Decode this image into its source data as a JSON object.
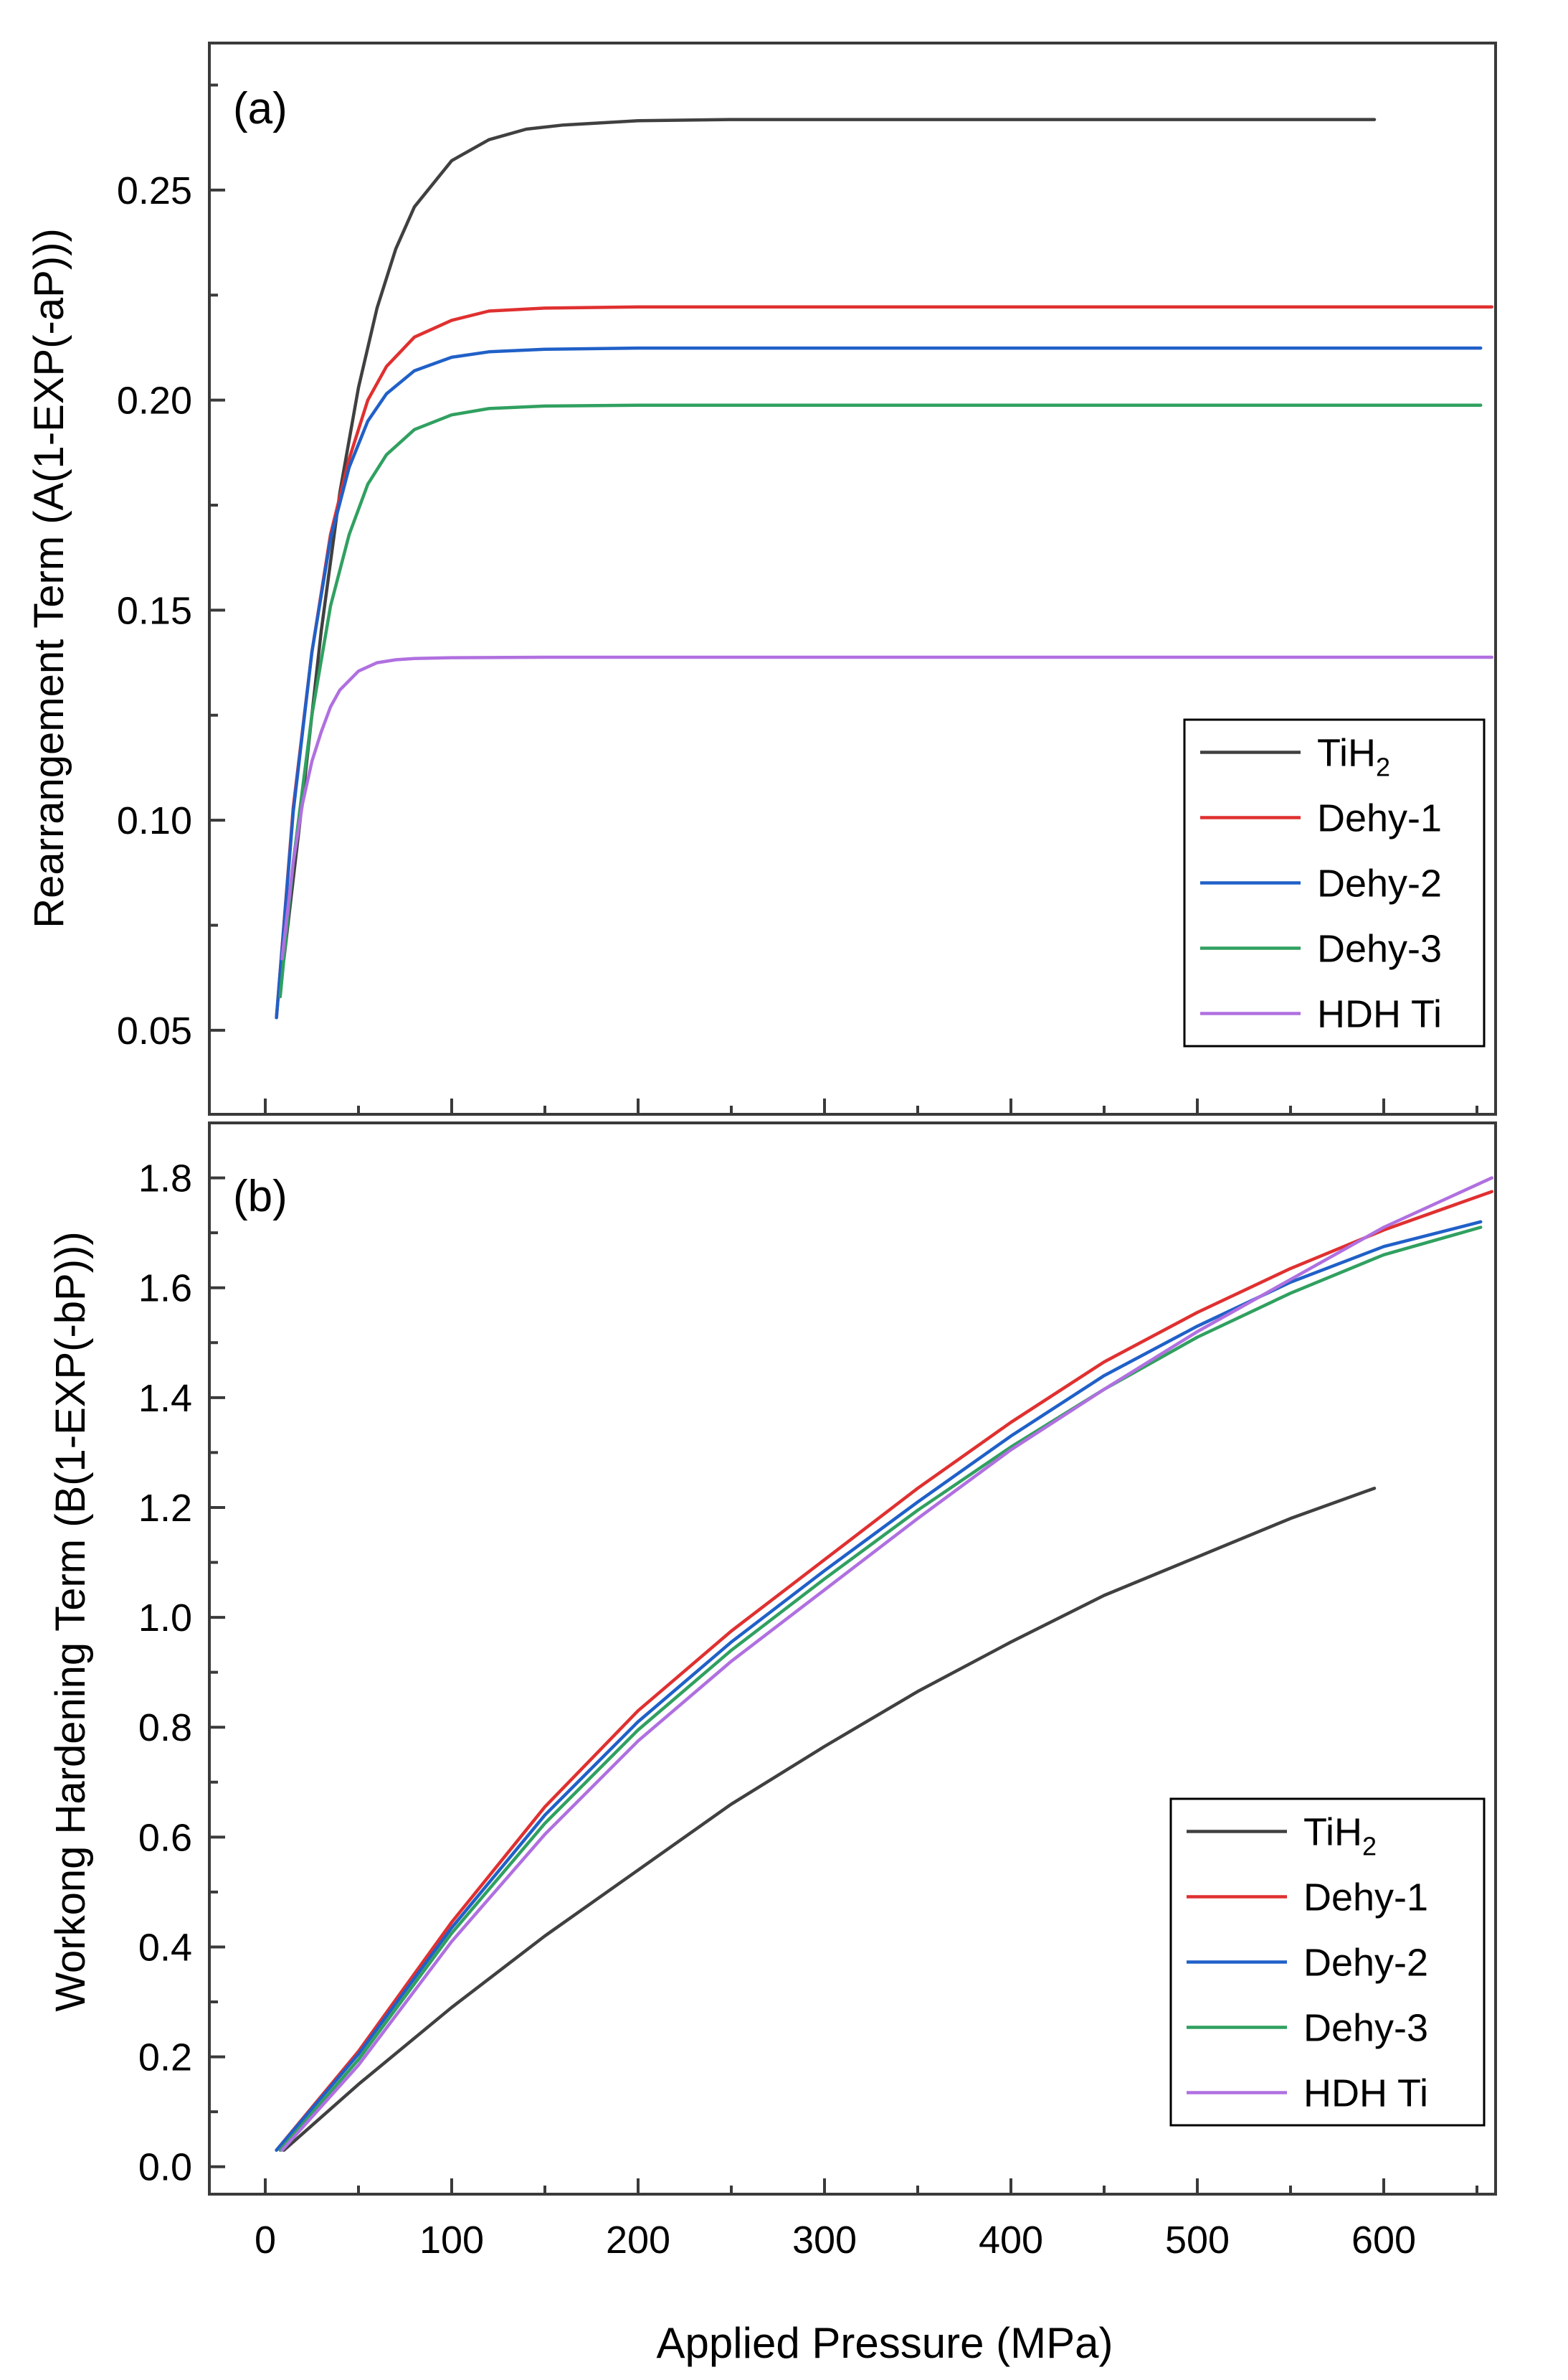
{
  "chart_data": [
    {
      "type": "line",
      "panel_label": "(a)",
      "title": "",
      "xlabel": "Applied Pressure (MPa)",
      "ylabel": "Rearrangement Term (A(1-EXP(-aP)))",
      "xlim": [
        -30,
        660
      ],
      "ylim": [
        0.03,
        0.285
      ],
      "xticks": [
        0,
        100,
        200,
        300,
        400,
        500,
        600
      ],
      "yticks": [
        0.05,
        0.1,
        0.15,
        0.2,
        0.25
      ],
      "ytick_labels": [
        "0.05",
        "0.10",
        "0.15",
        "0.20",
        "0.25"
      ],
      "grid": false,
      "legend_position": "bottom-right",
      "series": [
        {
          "name": "TiH",
          "name_sub": "2",
          "color": "#404040",
          "x": [
            10,
            20,
            30,
            40,
            50,
            60,
            70,
            80,
            100,
            120,
            140,
            160,
            180,
            200,
            250,
            300,
            400,
            500,
            595
          ],
          "y": [
            0.067,
            0.105,
            0.145,
            0.178,
            0.203,
            0.222,
            0.236,
            0.246,
            0.257,
            0.262,
            0.2645,
            0.2655,
            0.266,
            0.2665,
            0.2668,
            0.2668,
            0.2668,
            0.2668,
            0.2668
          ]
        },
        {
          "name": "Dehy-1",
          "name_sub": "",
          "color": "#e03030",
          "x": [
            6,
            15,
            25,
            35,
            45,
            55,
            65,
            80,
            100,
            120,
            150,
            200,
            300,
            400,
            500,
            600,
            658
          ],
          "y": [
            0.053,
            0.103,
            0.14,
            0.168,
            0.186,
            0.2,
            0.208,
            0.215,
            0.219,
            0.2212,
            0.2219,
            0.2222,
            0.2222,
            0.2222,
            0.2222,
            0.2222,
            0.2222
          ]
        },
        {
          "name": "Dehy-2",
          "name_sub": "",
          "color": "#2060c8",
          "x": [
            6,
            15,
            25,
            35,
            45,
            55,
            65,
            80,
            100,
            120,
            150,
            200,
            300,
            400,
            500,
            600,
            652
          ],
          "y": [
            0.053,
            0.102,
            0.14,
            0.167,
            0.184,
            0.195,
            0.2015,
            0.207,
            0.2102,
            0.2115,
            0.2121,
            0.2124,
            0.2124,
            0.2124,
            0.2124,
            0.2124,
            0.2124
          ]
        },
        {
          "name": "Dehy-3",
          "name_sub": "",
          "color": "#30a060",
          "x": [
            8,
            15,
            25,
            35,
            45,
            55,
            65,
            80,
            100,
            120,
            150,
            200,
            250,
            300,
            400,
            500,
            600,
            652
          ],
          "y": [
            0.058,
            0.09,
            0.125,
            0.151,
            0.168,
            0.18,
            0.187,
            0.193,
            0.1965,
            0.198,
            0.1986,
            0.1988,
            0.1988,
            0.1988,
            0.1988,
            0.1988,
            0.1988,
            0.1988
          ]
        },
        {
          "name": "HDH Ti",
          "name_sub": "",
          "color": "#b070e0",
          "x": [
            9,
            15,
            20,
            25,
            30,
            35,
            40,
            50,
            60,
            70,
            80,
            100,
            150,
            200,
            300,
            400,
            500,
            600,
            658
          ],
          "y": [
            0.067,
            0.09,
            0.104,
            0.114,
            0.121,
            0.127,
            0.131,
            0.1355,
            0.1375,
            0.1382,
            0.1385,
            0.1387,
            0.1388,
            0.1388,
            0.1388,
            0.1388,
            0.1388,
            0.1388,
            0.1388
          ]
        }
      ]
    },
    {
      "type": "line",
      "panel_label": "(b)",
      "title": "",
      "xlabel": "Applied Pressure (MPa)",
      "ylabel": "Workong Hardening Term (B(1-EXP(-bP)))",
      "xlim": [
        -30,
        660
      ],
      "ylim": [
        -0.05,
        1.9
      ],
      "xticks": [
        0,
        100,
        200,
        300,
        400,
        500,
        600
      ],
      "xtick_labels": [
        "0",
        "100",
        "200",
        "300",
        "400",
        "500",
        "600"
      ],
      "yticks": [
        0.0,
        0.2,
        0.4,
        0.6,
        0.8,
        1.0,
        1.2,
        1.4,
        1.6,
        1.8
      ],
      "ytick_labels": [
        "0.0",
        "0.2",
        "0.4",
        "0.6",
        "0.8",
        "1.0",
        "1.2",
        "1.4",
        "1.6",
        "1.8"
      ],
      "grid": false,
      "legend_position": "bottom-right",
      "series": [
        {
          "name": "TiH",
          "name_sub": "2",
          "color": "#404040",
          "x": [
            10,
            50,
            100,
            150,
            200,
            250,
            300,
            350,
            400,
            450,
            500,
            550,
            595
          ],
          "y": [
            0.03,
            0.15,
            0.29,
            0.42,
            0.54,
            0.66,
            0.765,
            0.865,
            0.955,
            1.04,
            1.11,
            1.18,
            1.235
          ]
        },
        {
          "name": "Dehy-1",
          "name_sub": "",
          "color": "#e03030",
          "x": [
            6,
            50,
            100,
            150,
            200,
            250,
            300,
            350,
            400,
            450,
            500,
            550,
            600,
            658
          ],
          "y": [
            0.03,
            0.21,
            0.445,
            0.655,
            0.83,
            0.975,
            1.105,
            1.235,
            1.355,
            1.465,
            1.555,
            1.635,
            1.705,
            1.775
          ]
        },
        {
          "name": "Dehy-2",
          "name_sub": "",
          "color": "#2060c8",
          "x": [
            6,
            50,
            100,
            150,
            200,
            250,
            300,
            350,
            400,
            450,
            500,
            550,
            600,
            652
          ],
          "y": [
            0.03,
            0.205,
            0.435,
            0.64,
            0.81,
            0.955,
            1.085,
            1.21,
            1.33,
            1.44,
            1.53,
            1.61,
            1.675,
            1.72
          ]
        },
        {
          "name": "Dehy-3",
          "name_sub": "",
          "color": "#30a060",
          "x": [
            8,
            50,
            100,
            150,
            200,
            250,
            300,
            350,
            400,
            450,
            500,
            550,
            600,
            652
          ],
          "y": [
            0.03,
            0.195,
            0.425,
            0.625,
            0.795,
            0.94,
            1.07,
            1.195,
            1.31,
            1.415,
            1.51,
            1.59,
            1.66,
            1.71
          ]
        },
        {
          "name": "HDH Ti",
          "name_sub": "",
          "color": "#b070e0",
          "x": [
            9,
            50,
            100,
            150,
            200,
            250,
            300,
            350,
            400,
            450,
            500,
            550,
            600,
            658
          ],
          "y": [
            0.03,
            0.185,
            0.41,
            0.605,
            0.775,
            0.92,
            1.05,
            1.18,
            1.305,
            1.415,
            1.52,
            1.615,
            1.71,
            1.8
          ]
        }
      ]
    }
  ]
}
